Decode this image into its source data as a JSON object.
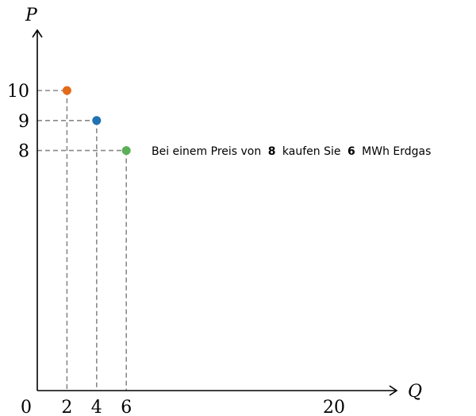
{
  "chart_data": {
    "type": "scatter",
    "xlabel": "Q",
    "ylabel": "P",
    "xlim": [
      0,
      22.5
    ],
    "ylim": [
      0,
      12
    ],
    "x_ticks": [
      "0",
      "2",
      "4",
      "6",
      "20"
    ],
    "y_ticks": [
      "10",
      "9",
      "8"
    ],
    "points": [
      {
        "x": 2,
        "y": 10,
        "color": "#e36a1a"
      },
      {
        "x": 4,
        "y": 9,
        "color": "#1f73b4"
      },
      {
        "x": 6,
        "y": 8,
        "color": "#5cae57"
      }
    ],
    "annotation": {
      "prefix": "Bei einem Preis von",
      "price": "8",
      "middle": "kaufen Sie",
      "quantity": "6",
      "suffix": "MWh Erdgas"
    },
    "grid": false,
    "legend": "none"
  }
}
